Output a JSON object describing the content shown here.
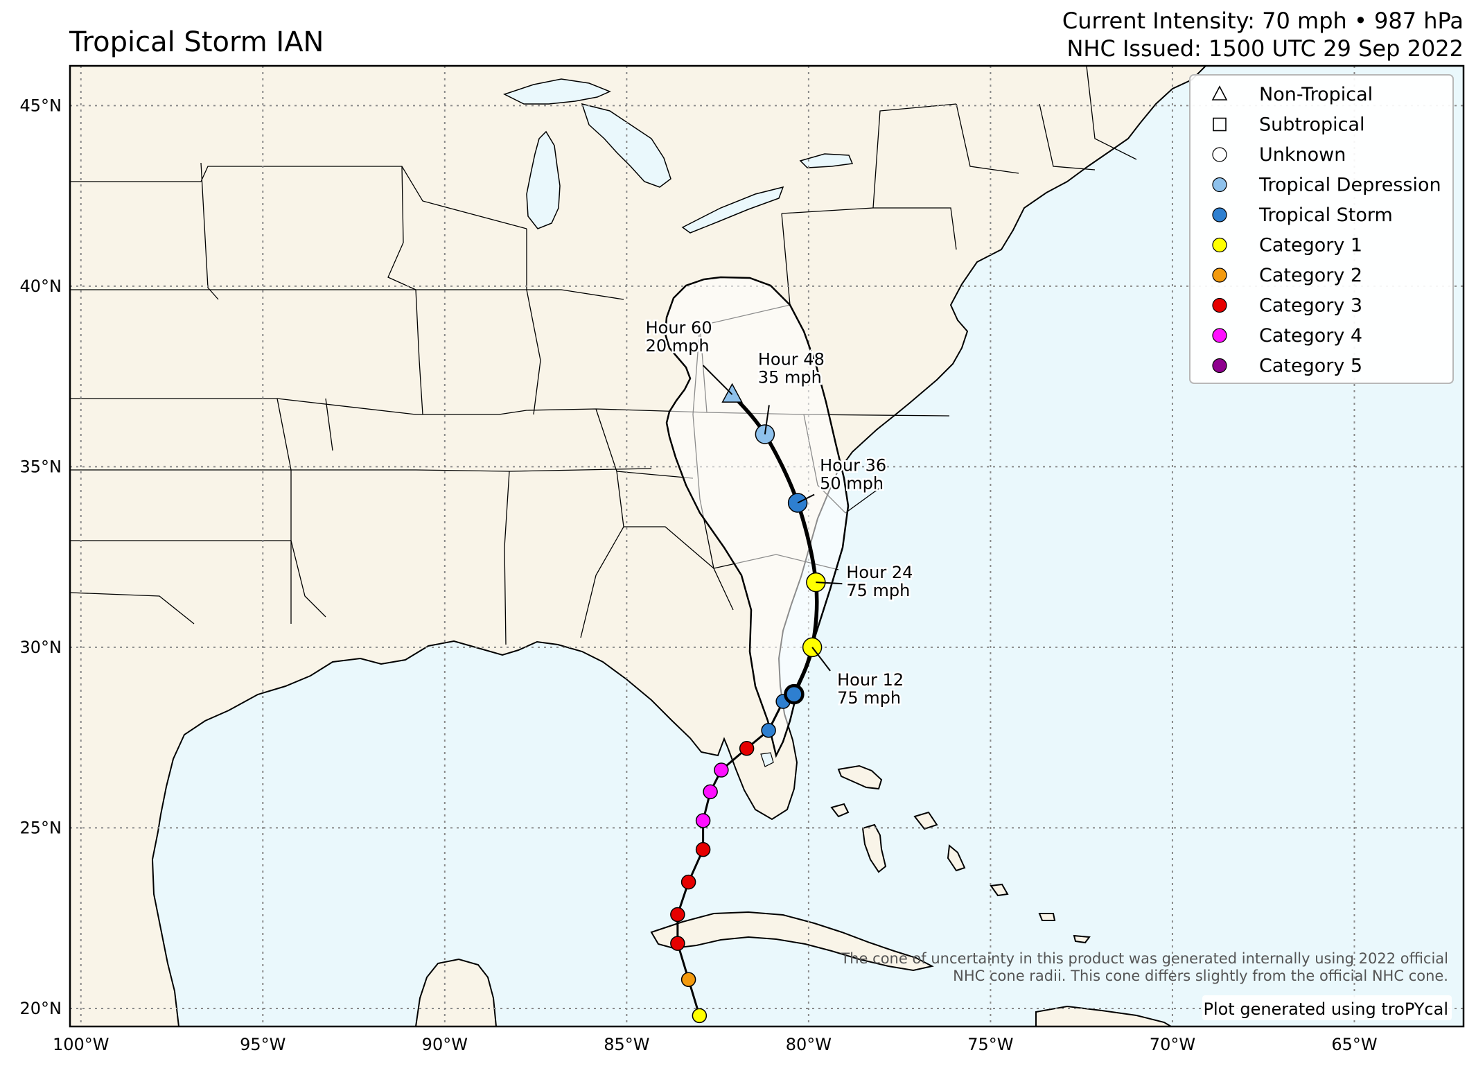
{
  "title": "Tropical Storm IAN",
  "header": {
    "intensity": "Current Intensity: 70 mph • 987 hPa",
    "issued": "NHC Issued: 1500 UTC 29 Sep 2022"
  },
  "axes": {
    "lon_ticks": [
      "100°W",
      "95°W",
      "90°W",
      "85°W",
      "80°W",
      "75°W",
      "70°W",
      "65°W"
    ],
    "lat_ticks": [
      "45°N",
      "40°N",
      "35°N",
      "30°N",
      "25°N",
      "20°N"
    ],
    "lon_range": [
      -100.3,
      -62.0
    ],
    "lat_range": [
      19.5,
      46.1
    ]
  },
  "colors": {
    "land": "#f9f4e8",
    "ocean": "#eaf8fc",
    "grid": "#8a8a8a",
    "Non-Tropical": "#ffffff",
    "Subtropical": "#ffffff",
    "Unknown": "#ffffff",
    "Tropical Depression": "#8ec1ec",
    "Tropical Storm": "#2e7fd0",
    "Category 1": "#ffff00",
    "Category 2": "#f39a0e",
    "Category 3": "#e60000",
    "Category 4": "#ff10ff",
    "Category 5": "#8e008e"
  },
  "legend": [
    {
      "label": "Non-Tropical",
      "icon": "triangle-icon"
    },
    {
      "label": "Subtropical",
      "icon": "square-icon"
    },
    {
      "label": "Unknown",
      "icon": "circle-icon"
    },
    {
      "label": "Tropical Depression",
      "icon": "circle-icon"
    },
    {
      "label": "Tropical Storm",
      "icon": "circle-icon"
    },
    {
      "label": "Category 1",
      "icon": "circle-icon"
    },
    {
      "label": "Category 2",
      "icon": "circle-icon"
    },
    {
      "label": "Category 3",
      "icon": "circle-icon"
    },
    {
      "label": "Category 4",
      "icon": "circle-icon"
    },
    {
      "label": "Category 5",
      "icon": "circle-icon"
    }
  ],
  "past_track": [
    {
      "lon": -83.0,
      "lat": 19.8,
      "category": "Category 1"
    },
    {
      "lon": -83.3,
      "lat": 20.8,
      "category": "Category 2"
    },
    {
      "lon": -83.6,
      "lat": 21.8,
      "category": "Category 3"
    },
    {
      "lon": -83.6,
      "lat": 22.6,
      "category": "Category 3"
    },
    {
      "lon": -83.3,
      "lat": 23.5,
      "category": "Category 3"
    },
    {
      "lon": -82.9,
      "lat": 24.4,
      "category": "Category 3"
    },
    {
      "lon": -82.9,
      "lat": 25.2,
      "category": "Category 4"
    },
    {
      "lon": -82.7,
      "lat": 26.0,
      "category": "Category 4"
    },
    {
      "lon": -82.4,
      "lat": 26.6,
      "category": "Category 4"
    },
    {
      "lon": -81.7,
      "lat": 27.2,
      "category": "Category 3"
    },
    {
      "lon": -81.1,
      "lat": 27.7,
      "category": "Tropical Storm"
    },
    {
      "lon": -80.7,
      "lat": 28.5,
      "category": "Tropical Storm"
    }
  ],
  "current_position": {
    "lon": -80.4,
    "lat": 28.7,
    "category": "Tropical Storm"
  },
  "forecast": [
    {
      "hour": "Hour 12",
      "wind": "75 mph",
      "lon": -79.9,
      "lat": 30.0,
      "category": "Category 1",
      "label_side": "right-below"
    },
    {
      "hour": "Hour 24",
      "wind": "75 mph",
      "lon": -79.8,
      "lat": 31.8,
      "category": "Category 1",
      "label_side": "right"
    },
    {
      "hour": "Hour 36",
      "wind": "50 mph",
      "lon": -80.3,
      "lat": 34.0,
      "category": "Tropical Storm",
      "label_side": "right-above"
    },
    {
      "hour": "Hour 48",
      "wind": "35 mph",
      "lon": -81.2,
      "lat": 35.9,
      "category": "Tropical Depression",
      "label_side": "above"
    },
    {
      "hour": "Hour 60",
      "wind": "20 mph",
      "lon": -82.1,
      "lat": 37.0,
      "category": "Non-Tropical",
      "label_side": "left-above"
    }
  ],
  "notes": {
    "cone": [
      "The cone of uncertainty in this product was generated internally using 2022 official",
      "NHC cone radii. This cone differs slightly from the official NHC cone."
    ],
    "credit": "Plot generated using troPYcal"
  }
}
